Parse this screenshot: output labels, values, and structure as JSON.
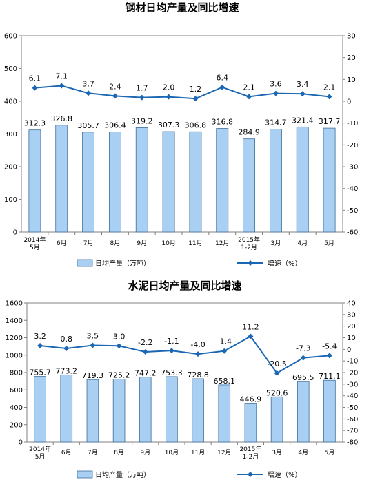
{
  "chart_data": [
    {
      "type": "bar",
      "title": "钢材日均产量及同比增速",
      "categories": [
        [
          "2014年",
          "5月"
        ],
        [
          "6月"
        ],
        [
          "7月"
        ],
        [
          "8月"
        ],
        [
          "9月"
        ],
        [
          "10月"
        ],
        [
          "11月"
        ],
        [
          "12月"
        ],
        [
          "2015年",
          "1-2月"
        ],
        [
          "3月"
        ],
        [
          "4月"
        ],
        [
          "5月"
        ]
      ],
      "series": [
        {
          "name": "日均产量（万吨）",
          "type": "bar",
          "axis": "left",
          "values": [
            312.3,
            326.8,
            305.7,
            306.4,
            319.2,
            307.3,
            306.8,
            316.8,
            284.9,
            314.7,
            321.4,
            317.7
          ],
          "labels": [
            "312.3",
            "326.8",
            "305.7",
            "306.4",
            "319.2",
            "307.3",
            "306.8",
            "316.8",
            "284.9",
            "314.7",
            "321.4",
            "317.7"
          ]
        },
        {
          "name": "增速（%）",
          "type": "line",
          "axis": "right",
          "values": [
            6.1,
            7.1,
            3.7,
            2.4,
            1.7,
            2.0,
            1.2,
            6.4,
            2.1,
            3.6,
            3.4,
            2.1
          ],
          "labels": [
            "6.1",
            "7.1",
            "3.7",
            "2.4",
            "1.7",
            "2.0",
            "1.2",
            "6.4",
            "2.1",
            "3.6",
            "3.4",
            "2.1"
          ]
        }
      ],
      "left_axis": {
        "ylim": [
          0,
          600
        ],
        "ticks": [
          "0",
          "100",
          "200",
          "300",
          "400",
          "500",
          "600"
        ]
      },
      "right_axis": {
        "ylim": [
          -60,
          30
        ],
        "ticks": [
          "30",
          "20",
          "10",
          "0",
          "-10",
          "-20",
          "-30",
          "-40",
          "-50",
          "-60"
        ]
      },
      "grid": false,
      "legend": "bottom",
      "colors": {
        "bar_fill": "#a9cff2",
        "bar_stroke": "#3f6f9a",
        "line": "#1b67b4"
      }
    },
    {
      "type": "bar",
      "title": "水泥日均产量及同比增速",
      "categories": [
        [
          "2014年",
          "5月"
        ],
        [
          "6月"
        ],
        [
          "7月"
        ],
        [
          "8月"
        ],
        [
          "9月"
        ],
        [
          "10月"
        ],
        [
          "11月"
        ],
        [
          "12月"
        ],
        [
          "2015年",
          "1-2月"
        ],
        [
          "3月"
        ],
        [
          "4月"
        ],
        [
          "5月"
        ]
      ],
      "series": [
        {
          "name": "日均产量（万吨）",
          "type": "bar",
          "axis": "left",
          "values": [
            755.7,
            773.2,
            719.3,
            725.2,
            747.2,
            753.3,
            728.8,
            658.1,
            446.9,
            520.6,
            695.5,
            711.1
          ],
          "labels": [
            "755.7",
            "773.2",
            "719.3",
            "725.2",
            "747.2",
            "753.3",
            "728.8",
            "658.1",
            "446.9",
            "520.6",
            "695.5",
            "711.1"
          ]
        },
        {
          "name": "增速（%）",
          "type": "line",
          "axis": "right",
          "values": [
            3.2,
            0.8,
            3.5,
            3.0,
            -2.2,
            -1.1,
            -4.0,
            -1.4,
            11.2,
            -20.5,
            -7.3,
            -5.4
          ],
          "labels": [
            "3.2",
            "0.8",
            "3.5",
            "3.0",
            "-2.2",
            "-1.1",
            "-4.0",
            "-1.4",
            "11.2",
            "-20.5",
            "-7.3",
            "-5.4"
          ]
        }
      ],
      "left_axis": {
        "ylim": [
          0,
          1600
        ],
        "ticks": [
          "0",
          "200",
          "400",
          "600",
          "800",
          "1000",
          "1200",
          "1400",
          "1600"
        ]
      },
      "right_axis": {
        "ylim": [
          -80,
          40
        ],
        "ticks": [
          "40",
          "30",
          "20",
          "10",
          "0",
          "-10",
          "-20",
          "-30",
          "-40",
          "-50",
          "-60",
          "-70",
          "-80"
        ]
      },
      "grid": false,
      "legend": "bottom",
      "colors": {
        "bar_fill": "#a9cff2",
        "bar_stroke": "#3f6f9a",
        "line": "#1b67b4"
      }
    }
  ]
}
